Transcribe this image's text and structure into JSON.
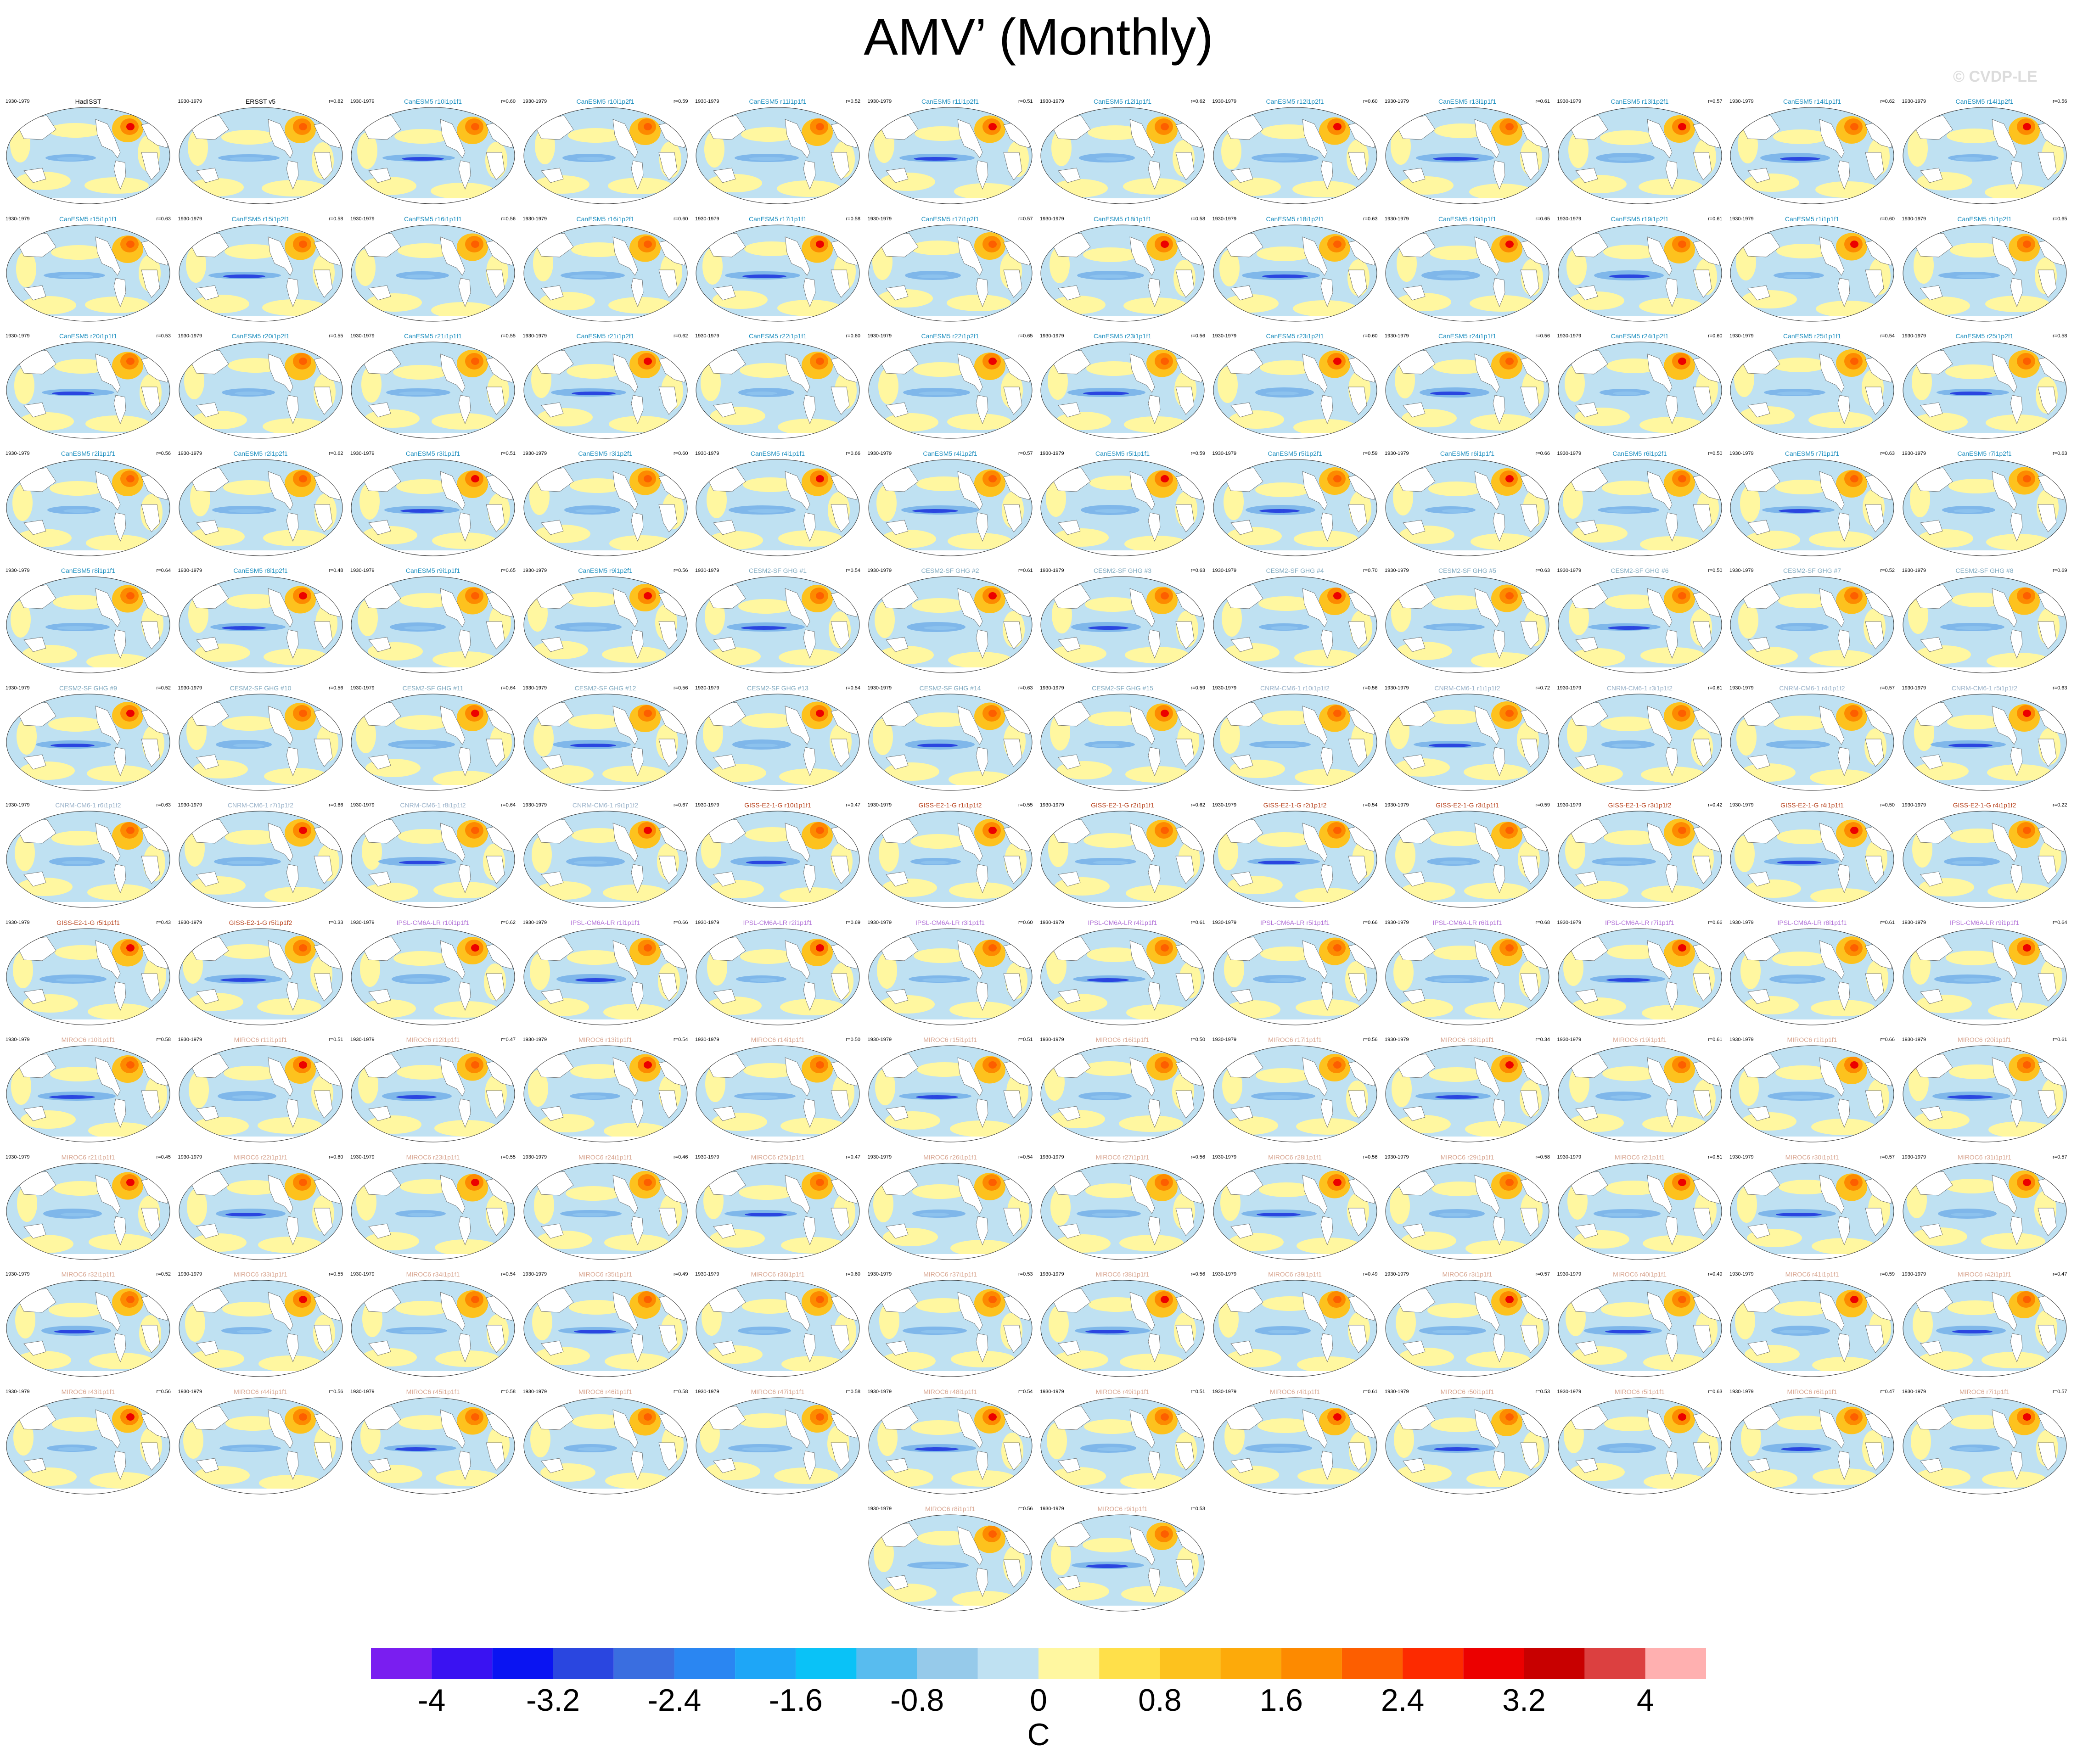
{
  "title": "AMV’ (Monthly)",
  "watermark": "© CVDP-LE",
  "period": "1930-1979",
  "colors": {
    "label_obs": "#000000",
    "label_CanESM5": "#1e8fbf",
    "label_CESM2": "#7fa9bf",
    "label_CNRM": "#9ab2c9",
    "label_GISS": "#b8441f",
    "label_IPSL": "#b06fd6",
    "label_MIROC6": "#d7a48f"
  },
  "panels": [
    {
      "label": "HadISST",
      "r": "",
      "group": "obs"
    },
    {
      "label": "ERSST v5",
      "r": "r=0.82",
      "group": "obs"
    },
    {
      "label": "CanESM5 r10i1p1f1",
      "r": "r=0.60",
      "group": "CanESM5"
    },
    {
      "label": "CanESM5 r10i1p2f1",
      "r": "r=0.59",
      "group": "CanESM5"
    },
    {
      "label": "CanESM5 r11i1p1f1",
      "r": "r=0.52",
      "group": "CanESM5"
    },
    {
      "label": "CanESM5 r11i1p2f1",
      "r": "r=0.51",
      "group": "CanESM5"
    },
    {
      "label": "CanESM5 r12i1p1f1",
      "r": "r=0.62",
      "group": "CanESM5"
    },
    {
      "label": "CanESM5 r12i1p2f1",
      "r": "r=0.60",
      "group": "CanESM5"
    },
    {
      "label": "CanESM5 r13i1p1f1",
      "r": "r=0.61",
      "group": "CanESM5"
    },
    {
      "label": "CanESM5 r13i1p2f1",
      "r": "r=0.57",
      "group": "CanESM5"
    },
    {
      "label": "CanESM5 r14i1p1f1",
      "r": "r=0.62",
      "group": "CanESM5"
    },
    {
      "label": "CanESM5 r14i1p2f1",
      "r": "r=0.56",
      "group": "CanESM5"
    },
    {
      "label": "CanESM5 r15i1p1f1",
      "r": "r=0.63",
      "group": "CanESM5"
    },
    {
      "label": "CanESM5 r15i1p2f1",
      "r": "r=0.58",
      "group": "CanESM5"
    },
    {
      "label": "CanESM5 r16i1p1f1",
      "r": "r=0.56",
      "group": "CanESM5"
    },
    {
      "label": "CanESM5 r16i1p2f1",
      "r": "r=0.60",
      "group": "CanESM5"
    },
    {
      "label": "CanESM5 r17i1p1f1",
      "r": "r=0.58",
      "group": "CanESM5"
    },
    {
      "label": "CanESM5 r17i1p2f1",
      "r": "r=0.57",
      "group": "CanESM5"
    },
    {
      "label": "CanESM5 r18i1p1f1",
      "r": "r=0.58",
      "group": "CanESM5"
    },
    {
      "label": "CanESM5 r18i1p2f1",
      "r": "r=0.63",
      "group": "CanESM5"
    },
    {
      "label": "CanESM5 r19i1p1f1",
      "r": "r=0.65",
      "group": "CanESM5"
    },
    {
      "label": "CanESM5 r19i1p2f1",
      "r": "r=0.61",
      "group": "CanESM5"
    },
    {
      "label": "CanESM5 r1i1p1f1",
      "r": "r=0.60",
      "group": "CanESM5"
    },
    {
      "label": "CanESM5 r1i1p2f1",
      "r": "r=0.65",
      "group": "CanESM5"
    },
    {
      "label": "CanESM5 r20i1p1f1",
      "r": "r=0.53",
      "group": "CanESM5"
    },
    {
      "label": "CanESM5 r20i1p2f1",
      "r": "r=0.55",
      "group": "CanESM5"
    },
    {
      "label": "CanESM5 r21i1p1f1",
      "r": "r=0.55",
      "group": "CanESM5"
    },
    {
      "label": "CanESM5 r21i1p2f1",
      "r": "r=0.62",
      "group": "CanESM5"
    },
    {
      "label": "CanESM5 r22i1p1f1",
      "r": "r=0.60",
      "group": "CanESM5"
    },
    {
      "label": "CanESM5 r22i1p2f1",
      "r": "r=0.65",
      "group": "CanESM5"
    },
    {
      "label": "CanESM5 r23i1p1f1",
      "r": "r=0.56",
      "group": "CanESM5"
    },
    {
      "label": "CanESM5 r23i1p2f1",
      "r": "r=0.60",
      "group": "CanESM5"
    },
    {
      "label": "CanESM5 r24i1p1f1",
      "r": "r=0.56",
      "group": "CanESM5"
    },
    {
      "label": "CanESM5 r24i1p2f1",
      "r": "r=0.60",
      "group": "CanESM5"
    },
    {
      "label": "CanESM5 r25i1p1f1",
      "r": "r=0.54",
      "group": "CanESM5"
    },
    {
      "label": "CanESM5 r25i1p2f1",
      "r": "r=0.58",
      "group": "CanESM5"
    },
    {
      "label": "CanESM5 r2i1p1f1",
      "r": "r=0.56",
      "group": "CanESM5"
    },
    {
      "label": "CanESM5 r2i1p2f1",
      "r": "r=0.62",
      "group": "CanESM5"
    },
    {
      "label": "CanESM5 r3i1p1f1",
      "r": "r=0.51",
      "group": "CanESM5"
    },
    {
      "label": "CanESM5 r3i1p2f1",
      "r": "r=0.60",
      "group": "CanESM5"
    },
    {
      "label": "CanESM5 r4i1p1f1",
      "r": "r=0.66",
      "group": "CanESM5"
    },
    {
      "label": "CanESM5 r4i1p2f1",
      "r": "r=0.57",
      "group": "CanESM5"
    },
    {
      "label": "CanESM5 r5i1p1f1",
      "r": "r=0.59",
      "group": "CanESM5"
    },
    {
      "label": "CanESM5 r5i1p2f1",
      "r": "r=0.59",
      "group": "CanESM5"
    },
    {
      "label": "CanESM5 r6i1p1f1",
      "r": "r=0.66",
      "group": "CanESM5"
    },
    {
      "label": "CanESM5 r6i1p2f1",
      "r": "r=0.50",
      "group": "CanESM5"
    },
    {
      "label": "CanESM5 r7i1p1f1",
      "r": "r=0.63",
      "group": "CanESM5"
    },
    {
      "label": "CanESM5 r7i1p2f1",
      "r": "r=0.63",
      "group": "CanESM5"
    },
    {
      "label": "CanESM5 r8i1p1f1",
      "r": "r=0.64",
      "group": "CanESM5"
    },
    {
      "label": "CanESM5 r8i1p2f1",
      "r": "r=0.48",
      "group": "CanESM5"
    },
    {
      "label": "CanESM5 r9i1p1f1",
      "r": "r=0.65",
      "group": "CanESM5"
    },
    {
      "label": "CanESM5 r9i1p2f1",
      "r": "r=0.56",
      "group": "CanESM5"
    },
    {
      "label": "CESM2-SF GHG #1",
      "r": "r=0.54",
      "group": "CESM2"
    },
    {
      "label": "CESM2-SF GHG #2",
      "r": "r=0.61",
      "group": "CESM2"
    },
    {
      "label": "CESM2-SF GHG #3",
      "r": "r=0.63",
      "group": "CESM2"
    },
    {
      "label": "CESM2-SF GHG #4",
      "r": "r=0.70",
      "group": "CESM2"
    },
    {
      "label": "CESM2-SF GHG #5",
      "r": "r=0.63",
      "group": "CESM2"
    },
    {
      "label": "CESM2-SF GHG #6",
      "r": "r=0.50",
      "group": "CESM2"
    },
    {
      "label": "CESM2-SF GHG #7",
      "r": "r=0.52",
      "group": "CESM2"
    },
    {
      "label": "CESM2-SF GHG #8",
      "r": "r=0.69",
      "group": "CESM2"
    },
    {
      "label": "CESM2-SF GHG #9",
      "r": "r=0.52",
      "group": "CESM2"
    },
    {
      "label": "CESM2-SF GHG #10",
      "r": "r=0.56",
      "group": "CESM2"
    },
    {
      "label": "CESM2-SF GHG #11",
      "r": "r=0.64",
      "group": "CESM2"
    },
    {
      "label": "CESM2-SF GHG #12",
      "r": "r=0.56",
      "group": "CESM2"
    },
    {
      "label": "CESM2-SF GHG #13",
      "r": "r=0.54",
      "group": "CESM2"
    },
    {
      "label": "CESM2-SF GHG #14",
      "r": "r=0.63",
      "group": "CESM2"
    },
    {
      "label": "CESM2-SF GHG #15",
      "r": "r=0.59",
      "group": "CESM2"
    },
    {
      "label": "CNRM-CM6-1 r10i1p1f2",
      "r": "r=0.56",
      "group": "CNRM"
    },
    {
      "label": "CNRM-CM6-1 r1i1p1f2",
      "r": "r=0.72",
      "group": "CNRM"
    },
    {
      "label": "CNRM-CM6-1 r3i1p1f2",
      "r": "r=0.61",
      "group": "CNRM"
    },
    {
      "label": "CNRM-CM6-1 r4i1p1f2",
      "r": "r=0.57",
      "group": "CNRM"
    },
    {
      "label": "CNRM-CM6-1 r5i1p1f2",
      "r": "r=0.63",
      "group": "CNRM"
    },
    {
      "label": "CNRM-CM6-1 r6i1p1f2",
      "r": "r=0.63",
      "group": "CNRM"
    },
    {
      "label": "CNRM-CM6-1 r7i1p1f2",
      "r": "r=0.66",
      "group": "CNRM"
    },
    {
      "label": "CNRM-CM6-1 r8i1p1f2",
      "r": "r=0.64",
      "group": "CNRM"
    },
    {
      "label": "CNRM-CM6-1 r9i1p1f2",
      "r": "r=0.67",
      "group": "CNRM"
    },
    {
      "label": "GISS-E2-1-G r10i1p1f1",
      "r": "r=0.47",
      "group": "GISS"
    },
    {
      "label": "GISS-E2-1-G r1i1p1f2",
      "r": "r=0.55",
      "group": "GISS"
    },
    {
      "label": "GISS-E2-1-G r2i1p1f1",
      "r": "r=0.62",
      "group": "GISS"
    },
    {
      "label": "GISS-E2-1-G r2i1p1f2",
      "r": "r=0.54",
      "group": "GISS"
    },
    {
      "label": "GISS-E2-1-G r3i1p1f1",
      "r": "r=0.59",
      "group": "GISS"
    },
    {
      "label": "GISS-E2-1-G r3i1p1f2",
      "r": "r=0.42",
      "group": "GISS"
    },
    {
      "label": "GISS-E2-1-G r4i1p1f1",
      "r": "r=0.50",
      "group": "GISS"
    },
    {
      "label": "GISS-E2-1-G r4i1p1f2",
      "r": "r=0.22",
      "group": "GISS"
    },
    {
      "label": "GISS-E2-1-G r5i1p1f1",
      "r": "r=0.43",
      "group": "GISS"
    },
    {
      "label": "GISS-E2-1-G r5i1p1f2",
      "r": "r=0.33",
      "group": "GISS"
    },
    {
      "label": "IPSL-CM6A-LR r10i1p1f1",
      "r": "r=0.62",
      "group": "IPSL"
    },
    {
      "label": "IPSL-CM6A-LR r1i1p1f1",
      "r": "r=0.66",
      "group": "IPSL"
    },
    {
      "label": "IPSL-CM6A-LR r2i1p1f1",
      "r": "r=0.69",
      "group": "IPSL"
    },
    {
      "label": "IPSL-CM6A-LR r3i1p1f1",
      "r": "r=0.60",
      "group": "IPSL"
    },
    {
      "label": "IPSL-CM6A-LR r4i1p1f1",
      "r": "r=0.61",
      "group": "IPSL"
    },
    {
      "label": "IPSL-CM6A-LR r5i1p1f1",
      "r": "r=0.66",
      "group": "IPSL"
    },
    {
      "label": "IPSL-CM6A-LR r6i1p1f1",
      "r": "r=0.68",
      "group": "IPSL"
    },
    {
      "label": "IPSL-CM6A-LR r7i1p1f1",
      "r": "r=0.66",
      "group": "IPSL"
    },
    {
      "label": "IPSL-CM6A-LR r8i1p1f1",
      "r": "r=0.61",
      "group": "IPSL"
    },
    {
      "label": "IPSL-CM6A-LR r9i1p1f1",
      "r": "r=0.64",
      "group": "IPSL"
    },
    {
      "label": "MIROC6 r10i1p1f1",
      "r": "r=0.58",
      "group": "MIROC6"
    },
    {
      "label": "MIROC6 r11i1p1f1",
      "r": "r=0.51",
      "group": "MIROC6"
    },
    {
      "label": "MIROC6 r12i1p1f1",
      "r": "r=0.47",
      "group": "MIROC6"
    },
    {
      "label": "MIROC6 r13i1p1f1",
      "r": "r=0.54",
      "group": "MIROC6"
    },
    {
      "label": "MIROC6 r14i1p1f1",
      "r": "r=0.50",
      "group": "MIROC6"
    },
    {
      "label": "MIROC6 r15i1p1f1",
      "r": "r=0.51",
      "group": "MIROC6"
    },
    {
      "label": "MIROC6 r16i1p1f1",
      "r": "r=0.50",
      "group": "MIROC6"
    },
    {
      "label": "MIROC6 r17i1p1f1",
      "r": "r=0.56",
      "group": "MIROC6"
    },
    {
      "label": "MIROC6 r18i1p1f1",
      "r": "r=0.34",
      "group": "MIROC6"
    },
    {
      "label": "MIROC6 r19i1p1f1",
      "r": "r=0.61",
      "group": "MIROC6"
    },
    {
      "label": "MIROC6 r1i1p1f1",
      "r": "r=0.66",
      "group": "MIROC6"
    },
    {
      "label": "MIROC6 r20i1p1f1",
      "r": "r=0.61",
      "group": "MIROC6"
    },
    {
      "label": "MIROC6 r21i1p1f1",
      "r": "r=0.45",
      "group": "MIROC6"
    },
    {
      "label": "MIROC6 r22i1p1f1",
      "r": "r=0.60",
      "group": "MIROC6"
    },
    {
      "label": "MIROC6 r23i1p1f1",
      "r": "r=0.55",
      "group": "MIROC6"
    },
    {
      "label": "MIROC6 r24i1p1f1",
      "r": "r=0.46",
      "group": "MIROC6"
    },
    {
      "label": "MIROC6 r25i1p1f1",
      "r": "r=0.47",
      "group": "MIROC6"
    },
    {
      "label": "MIROC6 r26i1p1f1",
      "r": "r=0.54",
      "group": "MIROC6"
    },
    {
      "label": "MIROC6 r27i1p1f1",
      "r": "r=0.56",
      "group": "MIROC6"
    },
    {
      "label": "MIROC6 r28i1p1f1",
      "r": "r=0.56",
      "group": "MIROC6"
    },
    {
      "label": "MIROC6 r29i1p1f1",
      "r": "r=0.58",
      "group": "MIROC6"
    },
    {
      "label": "MIROC6 r2i1p1f1",
      "r": "r=0.51",
      "group": "MIROC6"
    },
    {
      "label": "MIROC6 r30i1p1f1",
      "r": "r=0.57",
      "group": "MIROC6"
    },
    {
      "label": "MIROC6 r31i1p1f1",
      "r": "r=0.57",
      "group": "MIROC6"
    },
    {
      "label": "MIROC6 r32i1p1f1",
      "r": "r=0.52",
      "group": "MIROC6"
    },
    {
      "label": "MIROC6 r33i1p1f1",
      "r": "r=0.55",
      "group": "MIROC6"
    },
    {
      "label": "MIROC6 r34i1p1f1",
      "r": "r=0.54",
      "group": "MIROC6"
    },
    {
      "label": "MIROC6 r35i1p1f1",
      "r": "r=0.49",
      "group": "MIROC6"
    },
    {
      "label": "MIROC6 r36i1p1f1",
      "r": "r=0.60",
      "group": "MIROC6"
    },
    {
      "label": "MIROC6 r37i1p1f1",
      "r": "r=0.53",
      "group": "MIROC6"
    },
    {
      "label": "MIROC6 r38i1p1f1",
      "r": "r=0.56",
      "group": "MIROC6"
    },
    {
      "label": "MIROC6 r39i1p1f1",
      "r": "r=0.49",
      "group": "MIROC6"
    },
    {
      "label": "MIROC6 r3i1p1f1",
      "r": "r=0.57",
      "group": "MIROC6"
    },
    {
      "label": "MIROC6 r40i1p1f1",
      "r": "r=0.49",
      "group": "MIROC6"
    },
    {
      "label": "MIROC6 r41i1p1f1",
      "r": "r=0.59",
      "group": "MIROC6"
    },
    {
      "label": "MIROC6 r42i1p1f1",
      "r": "r=0.47",
      "group": "MIROC6"
    },
    {
      "label": "MIROC6 r43i1p1f1",
      "r": "r=0.56",
      "group": "MIROC6"
    },
    {
      "label": "MIROC6 r44i1p1f1",
      "r": "r=0.56",
      "group": "MIROC6"
    },
    {
      "label": "MIROC6 r45i1p1f1",
      "r": "r=0.58",
      "group": "MIROC6"
    },
    {
      "label": "MIROC6 r46i1p1f1",
      "r": "r=0.58",
      "group": "MIROC6"
    },
    {
      "label": "MIROC6 r47i1p1f1",
      "r": "r=0.58",
      "group": "MIROC6"
    },
    {
      "label": "MIROC6 r48i1p1f1",
      "r": "r=0.54",
      "group": "MIROC6"
    },
    {
      "label": "MIROC6 r49i1p1f1",
      "r": "r=0.51",
      "group": "MIROC6"
    },
    {
      "label": "MIROC6 r4i1p1f1",
      "r": "r=0.61",
      "group": "MIROC6"
    },
    {
      "label": "MIROC6 r50i1p1f1",
      "r": "r=0.53",
      "group": "MIROC6"
    },
    {
      "label": "MIROC6 r5i1p1f1",
      "r": "r=0.63",
      "group": "MIROC6"
    },
    {
      "label": "MIROC6 r6i1p1f1",
      "r": "r=0.47",
      "group": "MIROC6"
    },
    {
      "label": "MIROC6 r7i1p1f1",
      "r": "r=0.57",
      "group": "MIROC6"
    },
    {
      "label": "MIROC6 r8i1p1f1",
      "r": "r=0.56",
      "group": "MIROC6"
    },
    {
      "label": "MIROC6 r9i1p1f1",
      "r": "r=0.53",
      "group": "MIROC6"
    }
  ],
  "colorbar": {
    "colors": [
      "#7a1ef0",
      "#3a12f2",
      "#0a14f2",
      "#2a46e0",
      "#3a6ee0",
      "#2a86f2",
      "#1ea6f7",
      "#0ac2f7",
      "#58bcef",
      "#96caea",
      "#bfe1f2",
      "#fff7a0",
      "#ffe04a",
      "#fdc21e",
      "#fdaa0a",
      "#fd8a00",
      "#fd5e00",
      "#fd2a00",
      "#ec0000",
      "#c80000",
      "#dc4040",
      "#ffb0b0"
    ],
    "ticks": [
      "-4",
      "-3.2",
      "-2.4",
      "-1.6",
      "-0.8",
      "0",
      "0.8",
      "1.6",
      "2.4",
      "3.2",
      "4"
    ],
    "units": "C"
  }
}
